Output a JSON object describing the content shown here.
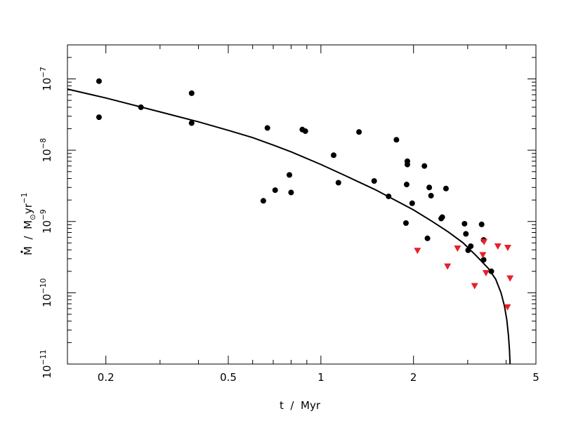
{
  "chart_data": {
    "type": "scatter",
    "title": "",
    "xlabel": "t  /  Myr",
    "ylabel_parts": {
      "sym": "M",
      "slash": "  /  M",
      "sun": "⊙",
      "unit": "yr",
      "exp": "−1"
    },
    "x_scale": "log",
    "y_scale": "log",
    "xlim": [
      0.15,
      5
    ],
    "ylim": [
      1e-11,
      3e-07
    ],
    "x_ticks": [
      {
        "value": 0.2,
        "label": "0.2"
      },
      {
        "value": 0.5,
        "label": "0.5"
      },
      {
        "value": 1,
        "label": "1"
      },
      {
        "value": 2,
        "label": "2"
      },
      {
        "value": 5,
        "label": "5"
      }
    ],
    "y_ticks": [
      {
        "value": 1e-11,
        "base": "10",
        "exp": "−11"
      },
      {
        "value": 1e-10,
        "base": "10",
        "exp": "−10"
      },
      {
        "value": 1e-09,
        "base": "10",
        "exp": "−9"
      },
      {
        "value": 1e-08,
        "base": "10",
        "exp": "−8"
      },
      {
        "value": 1e-07,
        "base": "10",
        "exp": "−7"
      }
    ],
    "grid": false,
    "legend": "none",
    "colors": {
      "detections": "#000000",
      "upper_limits": "#e8202a",
      "curve": "#000000"
    },
    "series": [
      {
        "marker": "circle",
        "points": [
          [
            0.19,
            9.3e-08
          ],
          [
            0.19,
            2.9e-08
          ],
          [
            0.26,
            4e-08
          ],
          [
            0.38,
            6.3e-08
          ],
          [
            0.38,
            2.4e-08
          ],
          [
            0.65,
            1.95e-09
          ],
          [
            0.67,
            2.05e-08
          ],
          [
            0.71,
            2.75e-09
          ],
          [
            0.79,
            4.5e-09
          ],
          [
            0.8,
            2.55e-09
          ],
          [
            0.87,
            1.95e-08
          ],
          [
            0.89,
            1.85e-08
          ],
          [
            1.1,
            8.5e-09
          ],
          [
            1.14,
            3.5e-09
          ],
          [
            1.33,
            1.8e-08
          ],
          [
            1.49,
            3.7e-09
          ],
          [
            1.66,
            2.25e-09
          ],
          [
            1.76,
            1.4e-08
          ],
          [
            1.89,
            9.5e-10
          ],
          [
            1.9,
            3.3e-09
          ],
          [
            1.91,
            7e-09
          ],
          [
            1.91,
            6.3e-09
          ],
          [
            1.98,
            1.8e-09
          ],
          [
            2.17,
            6e-09
          ],
          [
            2.22,
            5.8e-10
          ],
          [
            2.25,
            3e-09
          ],
          [
            2.28,
            2.3e-09
          ],
          [
            2.46,
            1.1e-09
          ],
          [
            2.48,
            1.15e-09
          ],
          [
            2.55,
            2.9e-09
          ],
          [
            2.93,
            9.3e-10
          ],
          [
            2.96,
            6.7e-10
          ],
          [
            3.01,
            3.95e-10
          ],
          [
            3.07,
            4.5e-10
          ],
          [
            3.33,
            9.1e-10
          ],
          [
            3.38,
            5.5e-10
          ],
          [
            3.38,
            2.9e-10
          ],
          [
            3.58,
            2e-10
          ]
        ]
      },
      {
        "marker": "triangle-down",
        "points": [
          [
            2.06,
            3.9e-10
          ],
          [
            2.58,
            2.35e-10
          ],
          [
            2.78,
            4.2e-10
          ],
          [
            3.16,
            1.25e-10
          ],
          [
            3.36,
            3.4e-10
          ],
          [
            3.39,
            5.2e-10
          ],
          [
            3.44,
            1.9e-10
          ],
          [
            3.76,
            4.5e-10
          ],
          [
            4.05,
            4.3e-10
          ],
          [
            4.12,
            1.6e-10
          ],
          [
            4.04,
            6.3e-11
          ]
        ]
      },
      {
        "marker": "line",
        "points": [
          [
            0.15,
            7.2e-08
          ],
          [
            0.2,
            5.4e-08
          ],
          [
            0.3,
            3.45e-08
          ],
          [
            0.4,
            2.5e-08
          ],
          [
            0.5,
            1.9e-08
          ],
          [
            0.6,
            1.5e-08
          ],
          [
            0.7,
            1.18e-08
          ],
          [
            0.8,
            9.5e-09
          ],
          [
            1.0,
            6.3e-09
          ],
          [
            1.2,
            4.4e-09
          ],
          [
            1.5,
            2.8e-09
          ],
          [
            1.8,
            1.85e-09
          ],
          [
            2.0,
            1.45e-09
          ],
          [
            2.3,
            1e-09
          ],
          [
            2.6,
            7.1e-10
          ],
          [
            2.9,
            5e-10
          ],
          [
            3.2,
            3.3e-10
          ],
          [
            3.5,
            2.2e-10
          ],
          [
            3.7,
            1.55e-10
          ],
          [
            3.85,
            1e-10
          ],
          [
            3.95,
            6.5e-11
          ],
          [
            4.02,
            4.2e-11
          ],
          [
            4.07,
            2.5e-11
          ],
          [
            4.1,
            1.6e-11
          ],
          [
            4.12,
            1e-11
          ]
        ]
      }
    ]
  }
}
